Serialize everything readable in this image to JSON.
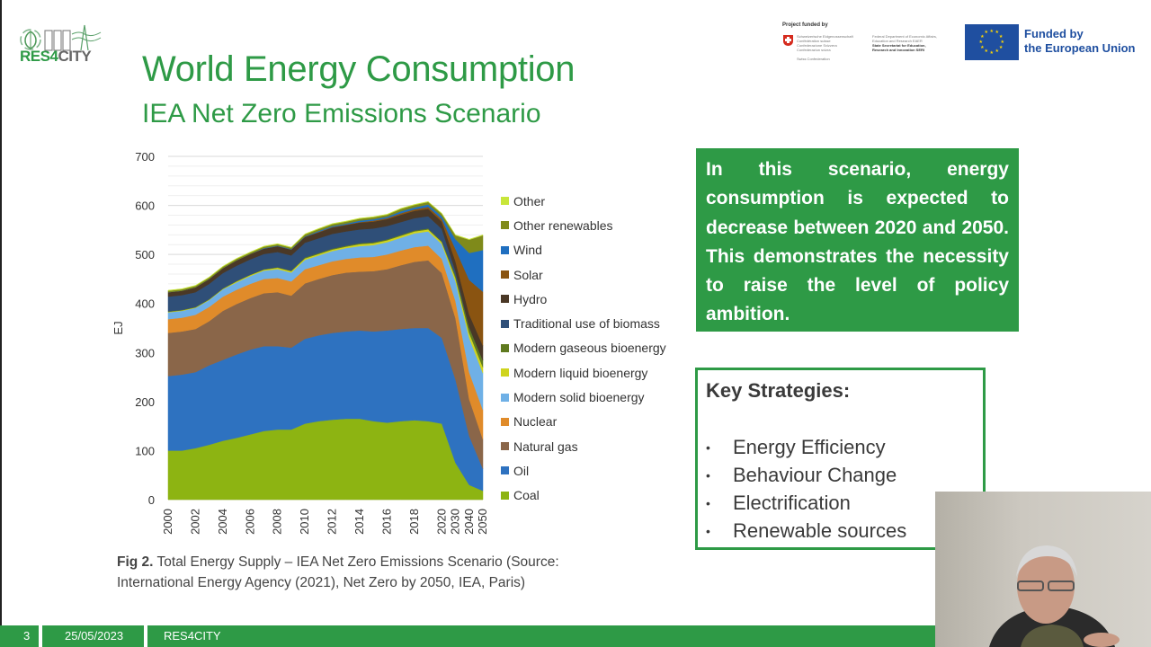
{
  "header": {
    "logo_text_res": "RES",
    "logo_text_4": "4",
    "logo_text_city": "CITY",
    "title": "World Energy Consumption",
    "subtitle": "IEA Net Zero Emissions Scenario"
  },
  "funding": {
    "swiss_heading": "Project funded by",
    "swiss_col1": [
      "Schweizerische Eidgenossenschaft",
      "Confédération suisse",
      "Confederazione Svizzera",
      "Confederaziun svizra",
      "",
      "Swiss Confederation"
    ],
    "swiss_col2": [
      "Federal Department of Economic Affairs,",
      "Education and Research EAER",
      "State Secretariat for Education,",
      "Research and Innovation SERI"
    ],
    "eu_line1": "Funded by",
    "eu_line2": "the European Union"
  },
  "chart_data": {
    "type": "area",
    "stacked": true,
    "title": "",
    "xlabel": "",
    "ylabel": "EJ",
    "ylim": [
      0,
      700
    ],
    "yticks": [
      0,
      100,
      200,
      300,
      400,
      500,
      600,
      700
    ],
    "grid": true,
    "legend_position": "right",
    "x": [
      "2000",
      "2001",
      "2002",
      "2003",
      "2004",
      "2005",
      "2006",
      "2007",
      "2008",
      "2009",
      "2010",
      "2011",
      "2012",
      "2013",
      "2014",
      "2015",
      "2016",
      "2017",
      "2018",
      "2019",
      "2020",
      "2030",
      "2040",
      "2050"
    ],
    "xtick_labels": [
      "2000",
      "2002",
      "2004",
      "2006",
      "2008",
      "2010",
      "2012",
      "2014",
      "2016",
      "2018",
      "2020",
      "2030",
      "2040",
      "2050"
    ],
    "series": [
      {
        "name": "Coal",
        "color": "#8db412",
        "values": [
          100,
          100,
          105,
          112,
          120,
          126,
          133,
          140,
          143,
          143,
          155,
          160,
          163,
          165,
          165,
          160,
          157,
          160,
          162,
          160,
          155,
          75,
          30,
          18
        ]
      },
      {
        "name": "Oil",
        "color": "#2e72c0",
        "values": [
          152,
          155,
          155,
          162,
          165,
          170,
          173,
          173,
          170,
          167,
          173,
          175,
          177,
          178,
          180,
          183,
          188,
          188,
          188,
          190,
          175,
          170,
          100,
          45
        ]
      },
      {
        "name": "Natural gas",
        "color": "#8a6649",
        "values": [
          88,
          88,
          88,
          90,
          100,
          103,
          105,
          108,
          110,
          106,
          113,
          115,
          118,
          120,
          120,
          123,
          125,
          130,
          135,
          138,
          132,
          125,
          75,
          60
        ]
      },
      {
        "name": "Nuclear",
        "color": "#e08b2a",
        "values": [
          28,
          28,
          29,
          29,
          29,
          29,
          29,
          29,
          29,
          29,
          29,
          28,
          28,
          28,
          29,
          29,
          30,
          30,
          30,
          30,
          29,
          35,
          55,
          60
        ]
      },
      {
        "name": "Modern solid bioenergy",
        "color": "#6fb0e6",
        "values": [
          14,
          14,
          14,
          14,
          15,
          15,
          16,
          17,
          18,
          18,
          19,
          20,
          21,
          22,
          23,
          24,
          25,
          26,
          28,
          29,
          30,
          40,
          70,
          75
        ]
      },
      {
        "name": "Modern liquid bioenergy",
        "color": "#cfd41e",
        "values": [
          1,
          1,
          1,
          1,
          1,
          2,
          2,
          2,
          3,
          3,
          3,
          3,
          3,
          3,
          4,
          4,
          4,
          4,
          4,
          4,
          4,
          7,
          10,
          12
        ]
      },
      {
        "name": "Modern gaseous bioenergy",
        "color": "#5f7a1f",
        "values": [
          1,
          1,
          1,
          1,
          1,
          1,
          1,
          1,
          1,
          1,
          2,
          2,
          2,
          2,
          2,
          2,
          2,
          2,
          2,
          2,
          2,
          6,
          12,
          14
        ]
      },
      {
        "name": "Traditional use of biomass",
        "color": "#2f4f78",
        "values": [
          30,
          30,
          30,
          31,
          31,
          31,
          31,
          31,
          31,
          31,
          30,
          30,
          30,
          29,
          28,
          28,
          27,
          26,
          25,
          25,
          25,
          8,
          0,
          0
        ]
      },
      {
        "name": "Hydro",
        "color": "#4a3826",
        "values": [
          9,
          9,
          10,
          10,
          10,
          11,
          11,
          11,
          12,
          12,
          12,
          12,
          13,
          13,
          14,
          14,
          14,
          15,
          15,
          15,
          15,
          20,
          26,
          30
        ]
      },
      {
        "name": "Solar",
        "color": "#8a5411",
        "values": [
          0,
          0,
          0,
          0,
          0,
          0,
          0,
          0,
          0,
          0,
          0,
          1,
          1,
          1,
          1,
          2,
          2,
          3,
          3,
          4,
          5,
          25,
          70,
          110
        ]
      },
      {
        "name": "Wind",
        "color": "#1f6fc0",
        "values": [
          0,
          0,
          0,
          0,
          0,
          0,
          0,
          1,
          1,
          1,
          1,
          2,
          2,
          2,
          3,
          3,
          3,
          4,
          4,
          5,
          6,
          20,
          55,
          85
        ]
      },
      {
        "name": "Other renewables",
        "color": "#7f8a1a",
        "values": [
          3,
          3,
          3,
          3,
          3,
          3,
          3,
          3,
          3,
          3,
          4,
          4,
          4,
          4,
          4,
          4,
          4,
          5,
          5,
          5,
          5,
          8,
          27,
          30
        ]
      },
      {
        "name": "Other",
        "color": "#c8e63a",
        "values": [
          1,
          1,
          1,
          1,
          1,
          1,
          1,
          1,
          1,
          1,
          1,
          1,
          1,
          1,
          1,
          1,
          1,
          1,
          1,
          1,
          1,
          1,
          1,
          1
        ]
      }
    ]
  },
  "legend_order": [
    "Other",
    "Other renewables",
    "Wind",
    "Solar",
    "Hydro",
    "Traditional use of biomass",
    "Modern gaseous bioenergy",
    "Modern liquid bioenergy",
    "Modern solid bioenergy",
    "Nuclear",
    "Natural gas",
    "Oil",
    "Coal"
  ],
  "caption": {
    "label": "Fig 2.",
    "text": " Total Energy Supply – IEA Net Zero Emissions Scenario (Source: International Energy Agency (2021), Net Zero by 2050, IEA, Paris)"
  },
  "summary_box": {
    "text": "In this scenario, energy consumption is expected to decrease between 2020 and 2050. This demonstrates the necessity to raise the level of policy ambition."
  },
  "strategies": {
    "title": "Key Strategies:",
    "items": [
      "Energy Efficiency",
      "Behaviour Change",
      "Electrification",
      "Renewable sources"
    ],
    "bullet": "•"
  },
  "footer": {
    "slide_number": "3",
    "date": "25/05/2023",
    "project": "RES4CITY"
  },
  "colors": {
    "brand_green": "#2e9a46",
    "eu_blue": "#1f4fa0"
  }
}
